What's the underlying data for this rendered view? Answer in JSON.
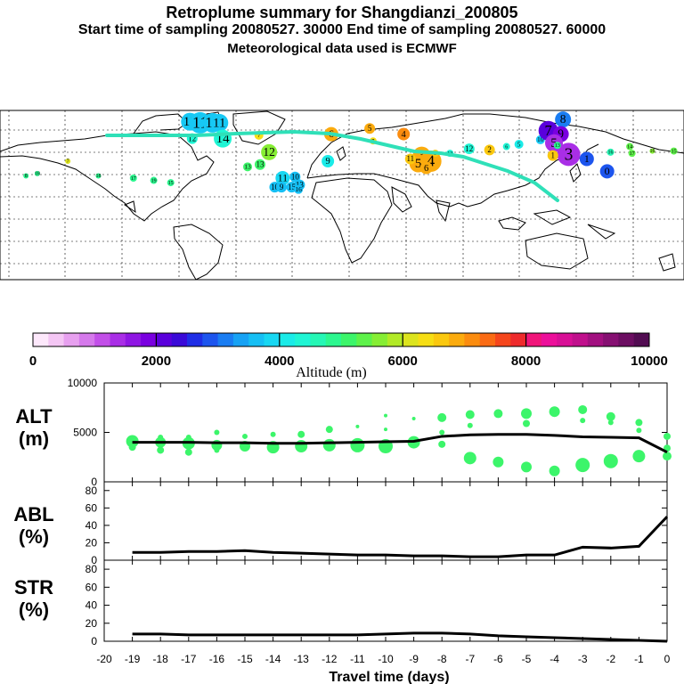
{
  "header": {
    "title": "Retroplume summary for Shangdianzi_200805",
    "subtitle": "Start time of sampling 20080527. 30000     End time of sampling 20080527. 60000",
    "met": "Meteorological data used is ECMWF"
  },
  "colorbar": {
    "ticks": [
      "0",
      "2000",
      "4000",
      "6000",
      "8000",
      "10000"
    ],
    "label": "Altitude (m)",
    "colors": [
      "#fde8fb",
      "#f4c6f4",
      "#e7a0ef",
      "#d579eb",
      "#c24fe8",
      "#a92ee6",
      "#8f16e3",
      "#7a00e0",
      "#5a00dc",
      "#3a0ad8",
      "#1f2ee6",
      "#1d55ee",
      "#1a7df2",
      "#17a2f4",
      "#16bff4",
      "#17d7f2",
      "#1aebe8",
      "#1ff5d4",
      "#25f7b5",
      "#2cf78f",
      "#3cf56a",
      "#5ef24a",
      "#86ee34",
      "#b2ea27",
      "#dce41e",
      "#f6de14",
      "#fac80f",
      "#fbab0e",
      "#fb8c0f",
      "#fa6b14",
      "#f5461c",
      "#ee2a2c",
      "#f0157a",
      "#ec0f9a",
      "#d80f96",
      "#c0108c",
      "#a21080",
      "#861072",
      "#6c0e62",
      "#520c52"
    ]
  },
  "map": {
    "labels": [
      {
        "t": "12",
        "lon": -17,
        "lat": 80,
        "r": 10,
        "c": "#17c8f4"
      },
      {
        "t": "11",
        "lon": -8,
        "lat": 79,
        "r": 12,
        "c": "#17c8f4"
      },
      {
        "t": "13",
        "lon": 3,
        "lat": 79,
        "r": 11,
        "c": "#17c8f4"
      },
      {
        "t": "11",
        "lon": 9,
        "lat": 79,
        "r": 10,
        "c": "#17c8f4"
      },
      {
        "t": "14",
        "lon": 12,
        "lat": 65,
        "r": 10,
        "c": "#1ff5d4"
      },
      {
        "t": "12",
        "lon": -15,
        "lat": 65,
        "r": 6,
        "c": "#1ff5d4"
      },
      {
        "t": "7",
        "lon": 44,
        "lat": 68,
        "r": 5,
        "c": "#f6de14"
      },
      {
        "t": "6",
        "lon": 108,
        "lat": 69,
        "r": 8,
        "c": "#fbab0e"
      },
      {
        "t": "5",
        "lon": 142,
        "lat": 74,
        "r": 6,
        "c": "#fbab0e"
      },
      {
        "t": "4",
        "lon": 172,
        "lat": 69,
        "r": 7,
        "c": "#fb8c0f"
      },
      {
        "t": "7",
        "lon": 145,
        "lat": 63,
        "r": 4,
        "c": "#f6de14"
      },
      {
        "t": "12",
        "lon": 53,
        "lat": 53,
        "r": 9,
        "c": "#86ee34"
      },
      {
        "t": "9",
        "lon": 105,
        "lat": 45,
        "r": 7,
        "c": "#1aebe8"
      },
      {
        "t": "13",
        "lon": 34,
        "lat": 40,
        "r": 5,
        "c": "#3cf56a"
      },
      {
        "t": "11",
        "lon": 65,
        "lat": 30,
        "r": 8,
        "c": "#17d7f2"
      },
      {
        "t": "10",
        "lon": 76,
        "lat": 31,
        "r": 6,
        "c": "#16bff4"
      },
      {
        "t": "13",
        "lon": 80,
        "lat": 24,
        "r": 6,
        "c": "#16bff4"
      },
      {
        "t": "10",
        "lon": 58,
        "lat": 22,
        "r": 6,
        "c": "#16bff4"
      },
      {
        "t": "9",
        "lon": 64,
        "lat": 22,
        "r": 6,
        "c": "#16bff4"
      },
      {
        "t": "15",
        "lon": 73,
        "lat": 22,
        "r": 6,
        "c": "#16bff4"
      },
      {
        "t": "16",
        "lon": 79,
        "lat": 20,
        "r": 5,
        "c": "#16bff4"
      },
      {
        "t": "19",
        "lon": -49,
        "lat": 28,
        "r": 4,
        "c": "#2cf78f"
      },
      {
        "t": "17",
        "lon": -67,
        "lat": 30,
        "r": 4,
        "c": "#2cf78f"
      },
      {
        "t": "18",
        "lon": -98,
        "lat": 32,
        "r": 3,
        "c": "#2cf78f"
      },
      {
        "t": "15",
        "lon": -34,
        "lat": 26,
        "r": 4,
        "c": "#2cf78f"
      },
      {
        "t": "8",
        "lon": -162,
        "lat": 32,
        "r": 3,
        "c": "#2cf78f"
      },
      {
        "t": "18",
        "lon": -152,
        "lat": 34,
        "r": 3,
        "c": "#2cf78f"
      },
      {
        "t": "7",
        "lon": -125,
        "lat": 45,
        "r": 3,
        "c": "#dce41e"
      },
      {
        "t": "13",
        "lon": 45,
        "lat": 42,
        "r": 6,
        "c": "#3cf56a"
      },
      {
        "t": "3",
        "lon": 188,
        "lat": 50,
        "r": 10,
        "c": "#fbab0e"
      },
      {
        "t": "4",
        "lon": 196,
        "lat": 45,
        "r": 12,
        "c": "#fbab0e"
      },
      {
        "t": "5",
        "lon": 185,
        "lat": 43,
        "r": 10,
        "c": "#fbab0e"
      },
      {
        "t": "6",
        "lon": 192,
        "lat": 39,
        "r": 7,
        "c": "#fbab0e"
      },
      {
        "t": "11",
        "lon": 178,
        "lat": 47,
        "r": 6,
        "c": "#fac80f"
      },
      {
        "t": "9",
        "lon": 200,
        "lat": 52,
        "r": 4,
        "c": "#fac80f"
      },
      {
        "t": "13",
        "lon": 213,
        "lat": 52,
        "r": 4,
        "c": "#1ff5d4"
      },
      {
        "t": "12",
        "lon": 230,
        "lat": 56,
        "r": 6,
        "c": "#1ff5d4"
      },
      {
        "t": "2",
        "lon": 248,
        "lat": 55,
        "r": 6,
        "c": "#fac80f"
      },
      {
        "t": "6",
        "lon": 263,
        "lat": 58,
        "r": 4,
        "c": "#1ff5d4"
      },
      {
        "t": "5",
        "lon": 274,
        "lat": 60,
        "r": 5,
        "c": "#1aebe8"
      },
      {
        "t": "10",
        "lon": 293,
        "lat": 64,
        "r": 5,
        "c": "#17c8f4"
      },
      {
        "t": "8",
        "lon": 313,
        "lat": 82,
        "r": 9,
        "c": "#1a7df2"
      },
      {
        "t": "7",
        "lon": 300,
        "lat": 72,
        "r": 11,
        "c": "#5a00dc"
      },
      {
        "t": "9",
        "lon": 311,
        "lat": 69,
        "r": 9,
        "c": "#7a00e0"
      },
      {
        "t": "5",
        "lon": 305,
        "lat": 61,
        "r": 10,
        "c": "#a92ee6"
      },
      {
        "t": "3",
        "lon": 318,
        "lat": 51,
        "r": 13,
        "c": "#a92ee6"
      },
      {
        "t": "1",
        "lon": 304,
        "lat": 50,
        "r": 6,
        "c": "#fac80f"
      },
      {
        "t": "1",
        "lon": 334,
        "lat": 47,
        "r": 8,
        "c": "#1d55ee"
      },
      {
        "t": "0",
        "lon": 352,
        "lat": 36,
        "r": 8,
        "c": "#1d55ee"
      },
      {
        "t": "13",
        "lon": 308,
        "lat": 59,
        "r": 4,
        "c": "#2cf78f"
      },
      {
        "t": "16",
        "lon": 355,
        "lat": 53,
        "r": 4,
        "c": "#25f7b5"
      },
      {
        "t": "14",
        "lon": 372,
        "lat": 58,
        "r": 4,
        "c": "#5ef24a"
      },
      {
        "t": "17",
        "lon": 374,
        "lat": 52,
        "r": 4,
        "c": "#5ef24a"
      },
      {
        "t": "16",
        "lon": 392,
        "lat": 54,
        "r": 3,
        "c": "#86ee34"
      },
      {
        "t": "15",
        "lon": 411,
        "lat": 54,
        "r": 4,
        "c": "#5ef24a"
      }
    ]
  },
  "panels": {
    "alt": {
      "label1": "ALT",
      "label2": "(m)",
      "ymin": 0,
      "ymax": 10000,
      "yticks": [
        "0",
        "5000",
        "10000"
      ],
      "tickvals": [
        0,
        5000,
        10000
      ]
    },
    "abl": {
      "label1": "ABL",
      "label2": "(%)",
      "ymin": 0,
      "ymax": 90,
      "yticks": [
        "0",
        "20",
        "40",
        "60",
        "80"
      ],
      "tickvals": [
        0,
        20,
        40,
        60,
        80
      ]
    },
    "str": {
      "label1": "STR",
      "label2": "(%)",
      "ymin": 0,
      "ymax": 90,
      "yticks": [
        "0",
        "20",
        "40",
        "60",
        "80"
      ],
      "tickvals": [
        0,
        20,
        40,
        60,
        80
      ]
    }
  },
  "chart_data": {
    "type": "line",
    "xlabel": "Travel time (days)",
    "xlim": [
      -20,
      0
    ],
    "xticks": [
      "-20",
      "-19",
      "-18",
      "-17",
      "-16",
      "-15",
      "-14",
      "-13",
      "-12",
      "-11",
      "-10",
      "-9",
      "-8",
      "-7",
      "-6",
      "-5",
      "-4",
      "-3",
      "-2",
      "-1",
      "0"
    ],
    "alt_mean": {
      "x": [
        -19,
        -18,
        -17,
        -16,
        -15,
        -14,
        -13,
        -12,
        -11,
        -10,
        -9,
        -8,
        -7,
        -6,
        -5,
        -4,
        -3,
        -2,
        -1,
        0
      ],
      "y": [
        4000,
        4000,
        4000,
        3950,
        3950,
        3900,
        3900,
        3950,
        4000,
        4050,
        4100,
        4600,
        4750,
        4800,
        4800,
        4700,
        4550,
        4500,
        4450,
        3000
      ]
    },
    "alt_dots": [
      {
        "x": -19.0,
        "y": 4100,
        "s": 7
      },
      {
        "x": -19.0,
        "y": 3500,
        "s": 4
      },
      {
        "x": -18.0,
        "y": 4000,
        "s": 6
      },
      {
        "x": -18.0,
        "y": 4500,
        "s": 3
      },
      {
        "x": -18.0,
        "y": 3200,
        "s": 4
      },
      {
        "x": -17.0,
        "y": 3900,
        "s": 7
      },
      {
        "x": -17.0,
        "y": 4500,
        "s": 3
      },
      {
        "x": -17.0,
        "y": 3000,
        "s": 4
      },
      {
        "x": -16.0,
        "y": 3700,
        "s": 6
      },
      {
        "x": -16.0,
        "y": 5000,
        "s": 3
      },
      {
        "x": -16.0,
        "y": 3200,
        "s": 3
      },
      {
        "x": -15.0,
        "y": 3600,
        "s": 6
      },
      {
        "x": -15.0,
        "y": 4600,
        "s": 3
      },
      {
        "x": -14.0,
        "y": 3500,
        "s": 7
      },
      {
        "x": -14.0,
        "y": 4800,
        "s": 3
      },
      {
        "x": -13.0,
        "y": 3600,
        "s": 7
      },
      {
        "x": -13.0,
        "y": 4800,
        "s": 4
      },
      {
        "x": -12.0,
        "y": 3700,
        "s": 7
      },
      {
        "x": -12.0,
        "y": 5300,
        "s": 4
      },
      {
        "x": -11.0,
        "y": 3700,
        "s": 8
      },
      {
        "x": -11.0,
        "y": 5600,
        "s": 2
      },
      {
        "x": -10.0,
        "y": 3600,
        "s": 8
      },
      {
        "x": -10.0,
        "y": 6700,
        "s": 2
      },
      {
        "x": -10.0,
        "y": 5300,
        "s": 2
      },
      {
        "x": -9.0,
        "y": 4000,
        "s": 7
      },
      {
        "x": -9.0,
        "y": 6400,
        "s": 2
      },
      {
        "x": -8.0,
        "y": 6500,
        "s": 5
      },
      {
        "x": -8.0,
        "y": 5000,
        "s": 3
      },
      {
        "x": -8.0,
        "y": 3800,
        "s": 4
      },
      {
        "x": -7.0,
        "y": 6800,
        "s": 5
      },
      {
        "x": -7.0,
        "y": 5700,
        "s": 3
      },
      {
        "x": -7.0,
        "y": 2400,
        "s": 7
      },
      {
        "x": -6.0,
        "y": 6900,
        "s": 5
      },
      {
        "x": -6.0,
        "y": 2000,
        "s": 6
      },
      {
        "x": -5.0,
        "y": 6900,
        "s": 6
      },
      {
        "x": -5.0,
        "y": 5900,
        "s": 4
      },
      {
        "x": -5.0,
        "y": 1500,
        "s": 6
      },
      {
        "x": -4.0,
        "y": 7100,
        "s": 6
      },
      {
        "x": -4.0,
        "y": 1100,
        "s": 6
      },
      {
        "x": -3.0,
        "y": 7300,
        "s": 5
      },
      {
        "x": -3.0,
        "y": 6200,
        "s": 3
      },
      {
        "x": -3.0,
        "y": 1700,
        "s": 8
      },
      {
        "x": -2.0,
        "y": 6600,
        "s": 5
      },
      {
        "x": -2.0,
        "y": 6000,
        "s": 3
      },
      {
        "x": -2.0,
        "y": 2100,
        "s": 8
      },
      {
        "x": -1.0,
        "y": 6000,
        "s": 4
      },
      {
        "x": -1.0,
        "y": 5200,
        "s": 3
      },
      {
        "x": -1.0,
        "y": 2600,
        "s": 7
      },
      {
        "x": 0.0,
        "y": 4600,
        "s": 4
      },
      {
        "x": 0.0,
        "y": 3400,
        "s": 4
      },
      {
        "x": 0.0,
        "y": 2600,
        "s": 5
      }
    ],
    "abl": {
      "x": [
        -19,
        -18,
        -17,
        -16,
        -15,
        -14,
        -13,
        -12,
        -11,
        -10,
        -9,
        -8,
        -7,
        -6,
        -5,
        -4,
        -3,
        -2,
        -1,
        0
      ],
      "y": [
        9,
        9,
        10,
        10,
        11,
        9,
        8,
        7,
        6,
        6,
        5,
        5,
        4,
        4,
        6,
        6,
        15,
        14,
        16,
        50
      ]
    },
    "str": {
      "x": [
        -19,
        -18,
        -17,
        -16,
        -15,
        -14,
        -13,
        -12,
        -11,
        -10,
        -9,
        -8,
        -7,
        -6,
        -5,
        -4,
        -3,
        -2,
        -1,
        0
      ],
      "y": [
        8,
        8,
        7,
        7,
        7,
        7,
        7,
        7,
        7,
        8,
        9,
        9,
        8,
        6,
        5,
        4,
        3,
        2,
        1,
        0
      ]
    }
  }
}
